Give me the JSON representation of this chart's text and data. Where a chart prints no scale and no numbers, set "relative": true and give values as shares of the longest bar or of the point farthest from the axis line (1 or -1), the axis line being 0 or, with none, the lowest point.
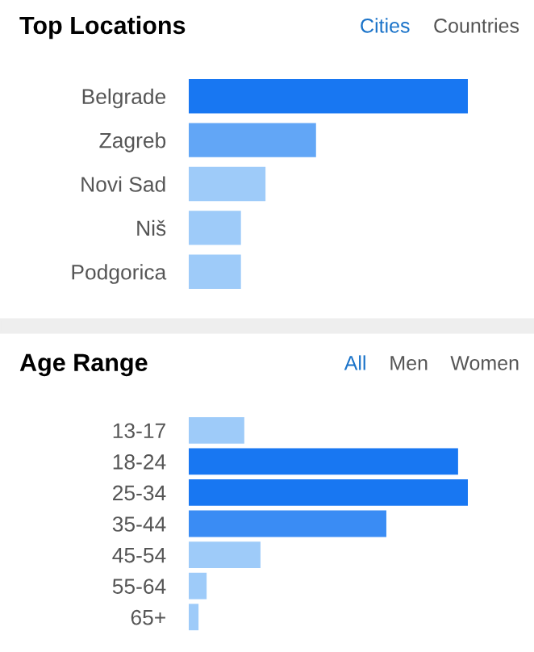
{
  "chart_data": [
    {
      "type": "bar",
      "orientation": "horizontal",
      "relative": true,
      "title": "Top Locations",
      "annotations": [
        "Cities",
        "Countries"
      ],
      "categories": [
        "Belgrade",
        "Zagreb",
        "Novi Sad",
        "Niš",
        "Podgorica"
      ],
      "values": [
        1,
        0.456,
        0.275,
        0.187,
        0.187
      ],
      "colors": [
        "#1877f2",
        "#62a6f6",
        "#9ecbf9",
        "#9ecbf9",
        "#9ecbf9"
      ]
    },
    {
      "type": "bar",
      "orientation": "horizontal",
      "relative": true,
      "title": "Age Range",
      "annotations": [
        "All",
        "Men",
        "Women"
      ],
      "categories": [
        "13-17",
        "18-24",
        "25-34",
        "35-44",
        "45-54",
        "55-64",
        "65+"
      ],
      "values": [
        0.199,
        0.965,
        1,
        0.708,
        0.257,
        0.064,
        0.035
      ],
      "colors": [
        "#9ecbf9",
        "#1877f2",
        "#1877f2",
        "#3a8cf4",
        "#9ecbf9",
        "#9ecbf9",
        "#9ecbf9"
      ]
    }
  ]
}
